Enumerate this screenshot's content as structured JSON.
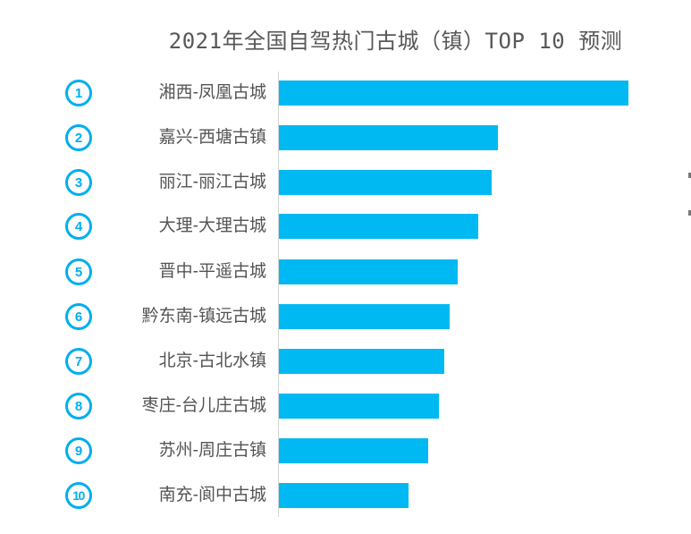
{
  "title": "2021年全国自驾热门古城（镇）TOP 10 预测",
  "colors": {
    "bar": "#00b9f2",
    "badge": "#00aeef",
    "title_text": "#595757",
    "label_text": "#545454",
    "axis_line": "#d4d4d4"
  },
  "chart_data": {
    "type": "bar",
    "orientation": "horizontal",
    "title": "2021年全国自驾热门古城（镇）TOP 10 预测",
    "categories": [
      "湘西-凤凰古城",
      "嘉兴-西塘古镇",
      "丽江-丽江古城",
      "大理-大理古城",
      "晋中-平遥古城",
      "黔东南-镇远古城",
      "北京-古北水镇",
      "枣庄-台儿庄古城",
      "苏州-周庄古镇",
      "南充-阆中古城"
    ],
    "rank_numbers": [
      1,
      2,
      3,
      4,
      5,
      6,
      7,
      8,
      9,
      10
    ],
    "values": [
      100,
      62.7,
      60.9,
      57.0,
      51.2,
      48.8,
      47.3,
      45.8,
      42.7,
      37.1
    ],
    "xlim": [
      0,
      100
    ],
    "xlabel": "",
    "ylabel": "",
    "value_labels_visible": false,
    "grid": false,
    "legend": false
  }
}
